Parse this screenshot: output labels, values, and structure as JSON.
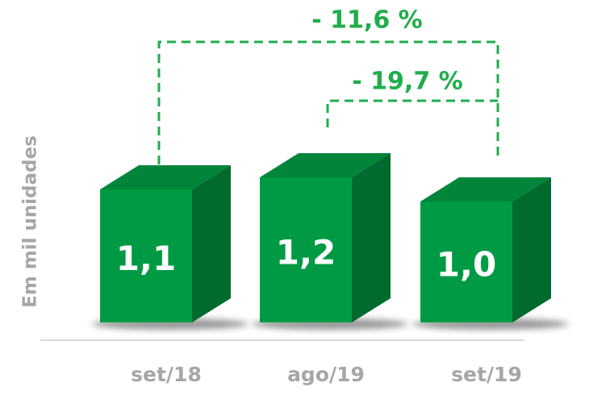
{
  "chart_data": {
    "type": "bar3d",
    "y_label": "Em mil unidades",
    "categories": [
      "set/18",
      "ago/19",
      "set/19"
    ],
    "values": [
      1.1,
      1.2,
      1.0
    ],
    "value_labels": [
      "1,1",
      "1,2",
      "1,0"
    ],
    "colors": {
      "front": "#009a44",
      "top": "#00853b",
      "side": "#006a2f"
    },
    "annotations": [
      "- 11,6 %",
      "- 19,7 %"
    ]
  }
}
